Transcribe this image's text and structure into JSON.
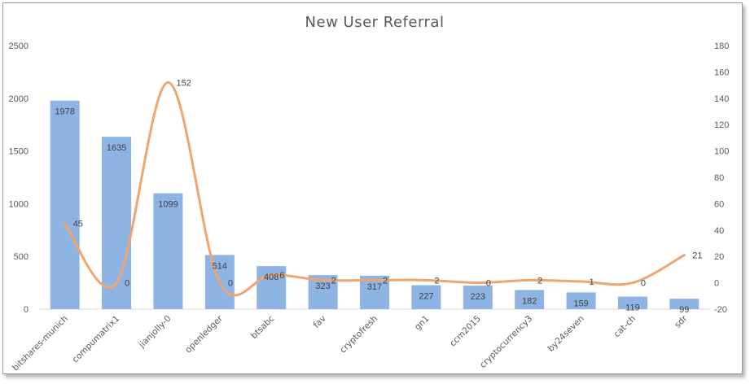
{
  "chart_data": {
    "type": "bar",
    "title": "New User Referral",
    "categories": [
      "bitshares-munich",
      "compumatrix1",
      "jianjolly-0",
      "openledger",
      "btsabc",
      "fav",
      "cryptofresh",
      "gn1",
      "ccm2015",
      "cryptocurrency3",
      "by24seven",
      "cat-ch",
      "sdr"
    ],
    "series": [
      {
        "type": "bar",
        "axis": "left",
        "color": "#8db4e2",
        "values": [
          1978,
          1635,
          1099,
          514,
          408,
          323,
          317,
          227,
          223,
          182,
          159,
          119,
          99
        ]
      },
      {
        "type": "line",
        "axis": "right",
        "smooth": true,
        "color": "#f0a56e",
        "values": [
          45,
          0,
          152,
          0,
          6,
          2,
          2,
          2,
          0,
          2,
          1,
          0,
          21
        ]
      }
    ],
    "y_left": {
      "min": 0,
      "max": 2500,
      "ticks": [
        0,
        500,
        1000,
        1500,
        2000,
        2500
      ]
    },
    "y_right": {
      "min": -20,
      "max": 180,
      "ticks": [
        -20,
        0,
        20,
        40,
        60,
        80,
        100,
        120,
        140,
        160,
        180
      ]
    },
    "grid": false,
    "legend": "none"
  }
}
